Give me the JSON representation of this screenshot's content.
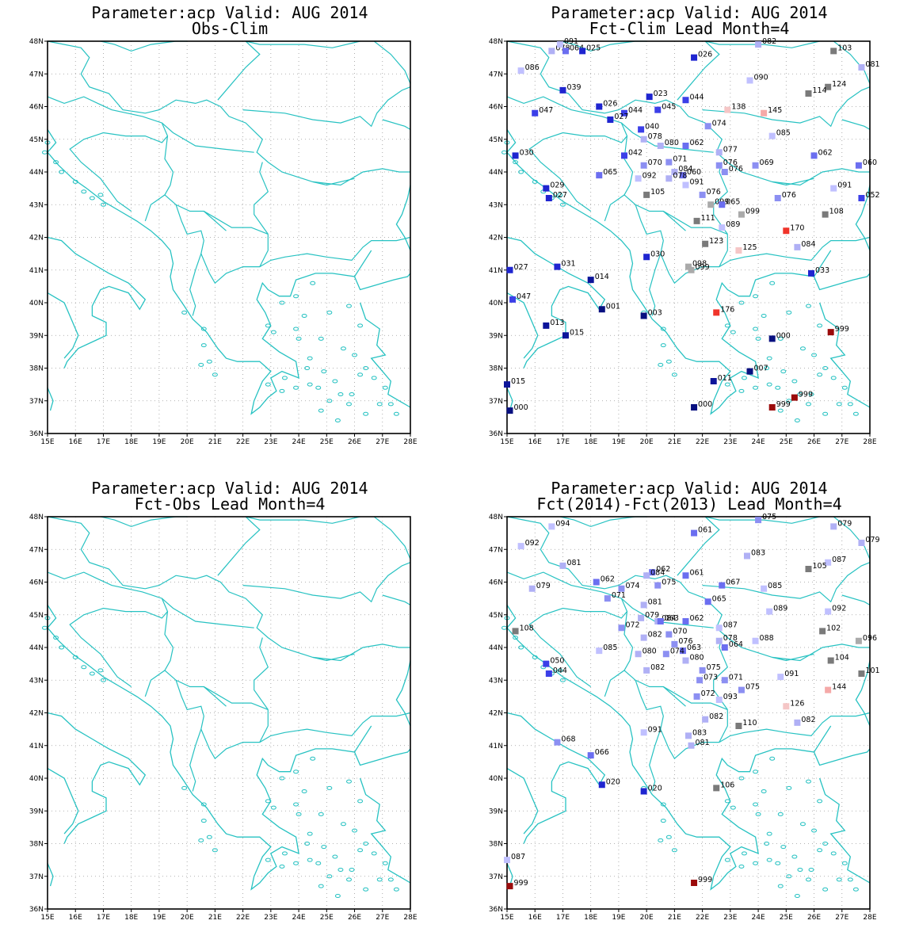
{
  "colors": {
    "coast": "#27c2c2",
    "grid": "#9a9a9a",
    "frame": "#000000"
  },
  "axes": {
    "x_ticks": [
      "15E",
      "16E",
      "17E",
      "18E",
      "19E",
      "20E",
      "21E",
      "22E",
      "23E",
      "24E",
      "25E",
      "26E",
      "27E",
      "28E"
    ],
    "y_ticks": [
      "48N",
      "47N",
      "46N",
      "45N",
      "44N",
      "43N",
      "42N",
      "41N",
      "40N",
      "39N",
      "38N",
      "37N",
      "36N"
    ],
    "lon_range": [
      15,
      28
    ],
    "lat_range": [
      36,
      48
    ]
  },
  "panels": [
    {
      "title1": "Parameter:acp Valid: AUG 2014",
      "title2": "Obs-Clim",
      "stations": []
    },
    {
      "title1": "Parameter:acp Valid: AUG 2014",
      "title2": "Fct-Clim Lead Month=4",
      "stations": [
        {
          "lon": 16.6,
          "lat": 47.7,
          "v": "078"
        },
        {
          "lon": 17.1,
          "lat": 47.7,
          "v": "064"
        },
        {
          "lon": 17.7,
          "lat": 47.7,
          "v": "025"
        },
        {
          "lon": 16.9,
          "lat": 47.9,
          "v": "091"
        },
        {
          "lon": 21.7,
          "lat": 47.5,
          "v": "026"
        },
        {
          "lon": 24.0,
          "lat": 47.9,
          "v": "082"
        },
        {
          "lon": 26.7,
          "lat": 47.7,
          "v": "103"
        },
        {
          "lon": 27.7,
          "lat": 47.2,
          "v": "081"
        },
        {
          "lon": 15.5,
          "lat": 47.1,
          "v": "086"
        },
        {
          "lon": 23.7,
          "lat": 46.8,
          "v": "090"
        },
        {
          "lon": 17.0,
          "lat": 46.5,
          "v": "039"
        },
        {
          "lon": 26.5,
          "lat": 46.6,
          "v": "124"
        },
        {
          "lon": 25.8,
          "lat": 46.4,
          "v": "114"
        },
        {
          "lon": 20.1,
          "lat": 46.3,
          "v": "023"
        },
        {
          "lon": 21.4,
          "lat": 46.2,
          "v": "044"
        },
        {
          "lon": 18.3,
          "lat": 46.0,
          "v": "026"
        },
        {
          "lon": 16.0,
          "lat": 45.8,
          "v": "047"
        },
        {
          "lon": 19.2,
          "lat": 45.8,
          "v": "044"
        },
        {
          "lon": 20.4,
          "lat": 45.9,
          "v": "045"
        },
        {
          "lon": 22.9,
          "lat": 45.9,
          "v": "138"
        },
        {
          "lon": 24.2,
          "lat": 45.8,
          "v": "145"
        },
        {
          "lon": 18.7,
          "lat": 45.6,
          "v": "027"
        },
        {
          "lon": 22.2,
          "lat": 45.4,
          "v": "074"
        },
        {
          "lon": 19.8,
          "lat": 45.3,
          "v": "040"
        },
        {
          "lon": 24.5,
          "lat": 45.1,
          "v": "085"
        },
        {
          "lon": 19.9,
          "lat": 45.0,
          "v": "078"
        },
        {
          "lon": 20.5,
          "lat": 44.8,
          "v": "080"
        },
        {
          "lon": 21.4,
          "lat": 44.8,
          "v": "062"
        },
        {
          "lon": 22.6,
          "lat": 44.6,
          "v": "077"
        },
        {
          "lon": 19.2,
          "lat": 44.5,
          "v": "042"
        },
        {
          "lon": 20.8,
          "lat": 44.3,
          "v": "071"
        },
        {
          "lon": 19.9,
          "lat": 44.2,
          "v": "070"
        },
        {
          "lon": 22.6,
          "lat": 44.2,
          "v": "076"
        },
        {
          "lon": 23.9,
          "lat": 44.2,
          "v": "069"
        },
        {
          "lon": 26.0,
          "lat": 44.5,
          "v": "062"
        },
        {
          "lon": 27.6,
          "lat": 44.2,
          "v": "060"
        },
        {
          "lon": 15.3,
          "lat": 44.5,
          "v": "030"
        },
        {
          "lon": 21.0,
          "lat": 44.0,
          "v": "084"
        },
        {
          "lon": 21.3,
          "lat": 43.9,
          "v": "060"
        },
        {
          "lon": 22.8,
          "lat": 44.0,
          "v": "076"
        },
        {
          "lon": 18.3,
          "lat": 43.9,
          "v": "065"
        },
        {
          "lon": 19.7,
          "lat": 43.8,
          "v": "092"
        },
        {
          "lon": 20.8,
          "lat": 43.8,
          "v": "078"
        },
        {
          "lon": 21.4,
          "lat": 43.6,
          "v": "091"
        },
        {
          "lon": 16.4,
          "lat": 43.5,
          "v": "029"
        },
        {
          "lon": 26.7,
          "lat": 43.5,
          "v": "091"
        },
        {
          "lon": 22.0,
          "lat": 43.3,
          "v": "076"
        },
        {
          "lon": 20.0,
          "lat": 43.3,
          "v": "105"
        },
        {
          "lon": 16.5,
          "lat": 43.2,
          "v": "027"
        },
        {
          "lon": 27.7,
          "lat": 43.2,
          "v": "052"
        },
        {
          "lon": 24.7,
          "lat": 43.2,
          "v": "076"
        },
        {
          "lon": 22.3,
          "lat": 43.0,
          "v": "099"
        },
        {
          "lon": 22.7,
          "lat": 43.0,
          "v": "065"
        },
        {
          "lon": 23.4,
          "lat": 42.7,
          "v": "099"
        },
        {
          "lon": 26.4,
          "lat": 42.7,
          "v": "108"
        },
        {
          "lon": 21.8,
          "lat": 42.5,
          "v": "111"
        },
        {
          "lon": 22.7,
          "lat": 42.3,
          "v": "089"
        },
        {
          "lon": 25.0,
          "lat": 42.2,
          "v": "170"
        },
        {
          "lon": 22.1,
          "lat": 41.8,
          "v": "123"
        },
        {
          "lon": 25.4,
          "lat": 41.7,
          "v": "084"
        },
        {
          "lon": 23.3,
          "lat": 41.6,
          "v": "125"
        },
        {
          "lon": 21.5,
          "lat": 41.1,
          "v": "098"
        },
        {
          "lon": 20.0,
          "lat": 41.4,
          "v": "030"
        },
        {
          "lon": 21.6,
          "lat": 41.0,
          "v": "099"
        },
        {
          "lon": 15.1,
          "lat": 41.0,
          "v": "027"
        },
        {
          "lon": 16.8,
          "lat": 41.1,
          "v": "031"
        },
        {
          "lon": 25.9,
          "lat": 40.9,
          "v": "033"
        },
        {
          "lon": 18.0,
          "lat": 40.7,
          "v": "014"
        },
        {
          "lon": 15.2,
          "lat": 40.1,
          "v": "047"
        },
        {
          "lon": 18.4,
          "lat": 39.8,
          "v": "001"
        },
        {
          "lon": 19.9,
          "lat": 39.6,
          "v": "003"
        },
        {
          "lon": 22.5,
          "lat": 39.7,
          "v": "176"
        },
        {
          "lon": 16.4,
          "lat": 39.3,
          "v": "013"
        },
        {
          "lon": 17.1,
          "lat": 39.0,
          "v": "015"
        },
        {
          "lon": 24.5,
          "lat": 38.9,
          "v": "000"
        },
        {
          "lon": 26.6,
          "lat": 39.1,
          "v": "999"
        },
        {
          "lon": 23.7,
          "lat": 37.9,
          "v": "007"
        },
        {
          "lon": 15.0,
          "lat": 37.5,
          "v": "015"
        },
        {
          "lon": 22.4,
          "lat": 37.6,
          "v": "011"
        },
        {
          "lon": 25.3,
          "lat": 37.1,
          "v": "999"
        },
        {
          "lon": 21.7,
          "lat": 36.8,
          "v": "000"
        },
        {
          "lon": 24.5,
          "lat": 36.8,
          "v": "999"
        },
        {
          "lon": 15.1,
          "lat": 36.7,
          "v": "000"
        }
      ]
    },
    {
      "title1": "Parameter:acp Valid: AUG 2014",
      "title2": "Fct-Obs Lead Month=4",
      "stations": []
    },
    {
      "title1": "Parameter:acp Valid: AUG 2014",
      "title2": "Fct(2014)-Fct(2013) Lead Month=4",
      "stations": [
        {
          "lon": 16.6,
          "lat": 47.7,
          "v": "094"
        },
        {
          "lon": 21.7,
          "lat": 47.5,
          "v": "061"
        },
        {
          "lon": 24.0,
          "lat": 47.9,
          "v": "075"
        },
        {
          "lon": 26.7,
          "lat": 47.7,
          "v": "079"
        },
        {
          "lon": 27.7,
          "lat": 47.2,
          "v": "079"
        },
        {
          "lon": 15.5,
          "lat": 47.1,
          "v": "092"
        },
        {
          "lon": 23.6,
          "lat": 46.8,
          "v": "083"
        },
        {
          "lon": 17.0,
          "lat": 46.5,
          "v": "081"
        },
        {
          "lon": 26.5,
          "lat": 46.6,
          "v": "087"
        },
        {
          "lon": 25.8,
          "lat": 46.4,
          "v": "105"
        },
        {
          "lon": 20.2,
          "lat": 46.3,
          "v": "062"
        },
        {
          "lon": 21.4,
          "lat": 46.2,
          "v": "061"
        },
        {
          "lon": 18.2,
          "lat": 46.0,
          "v": "062"
        },
        {
          "lon": 15.9,
          "lat": 45.8,
          "v": "079"
        },
        {
          "lon": 19.1,
          "lat": 45.8,
          "v": "074"
        },
        {
          "lon": 20.4,
          "lat": 45.9,
          "v": "075"
        },
        {
          "lon": 22.7,
          "lat": 45.9,
          "v": "067"
        },
        {
          "lon": 24.2,
          "lat": 45.8,
          "v": "085"
        },
        {
          "lon": 20.0,
          "lat": 46.2,
          "v": "084"
        },
        {
          "lon": 18.6,
          "lat": 45.5,
          "v": "071"
        },
        {
          "lon": 22.2,
          "lat": 45.4,
          "v": "065"
        },
        {
          "lon": 19.9,
          "lat": 45.3,
          "v": "081"
        },
        {
          "lon": 24.4,
          "lat": 45.1,
          "v": "089"
        },
        {
          "lon": 26.5,
          "lat": 45.1,
          "v": "092"
        },
        {
          "lon": 19.8,
          "lat": 44.9,
          "v": "079"
        },
        {
          "lon": 20.4,
          "lat": 44.8,
          "v": "084"
        },
        {
          "lon": 20.5,
          "lat": 44.8,
          "v": "063"
        },
        {
          "lon": 21.4,
          "lat": 44.8,
          "v": "062"
        },
        {
          "lon": 22.6,
          "lat": 44.6,
          "v": "087"
        },
        {
          "lon": 19.1,
          "lat": 44.6,
          "v": "072"
        },
        {
          "lon": 20.8,
          "lat": 44.4,
          "v": "070"
        },
        {
          "lon": 19.9,
          "lat": 44.3,
          "v": "082"
        },
        {
          "lon": 22.6,
          "lat": 44.2,
          "v": "078"
        },
        {
          "lon": 23.9,
          "lat": 44.2,
          "v": "088"
        },
        {
          "lon": 26.3,
          "lat": 44.5,
          "v": "102"
        },
        {
          "lon": 27.6,
          "lat": 44.2,
          "v": "096"
        },
        {
          "lon": 15.3,
          "lat": 44.5,
          "v": "108"
        },
        {
          "lon": 21.0,
          "lat": 44.1,
          "v": "076"
        },
        {
          "lon": 21.3,
          "lat": 43.9,
          "v": "063"
        },
        {
          "lon": 22.8,
          "lat": 44.0,
          "v": "064"
        },
        {
          "lon": 18.3,
          "lat": 43.9,
          "v": "085"
        },
        {
          "lon": 19.7,
          "lat": 43.8,
          "v": "080"
        },
        {
          "lon": 20.7,
          "lat": 43.8,
          "v": "074"
        },
        {
          "lon": 21.4,
          "lat": 43.6,
          "v": "080"
        },
        {
          "lon": 16.4,
          "lat": 43.5,
          "v": "050"
        },
        {
          "lon": 26.6,
          "lat": 43.6,
          "v": "104"
        },
        {
          "lon": 20.0,
          "lat": 43.3,
          "v": "082"
        },
        {
          "lon": 22.0,
          "lat": 43.3,
          "v": "075"
        },
        {
          "lon": 16.5,
          "lat": 43.2,
          "v": "044"
        },
        {
          "lon": 27.7,
          "lat": 43.2,
          "v": "101"
        },
        {
          "lon": 24.8,
          "lat": 43.1,
          "v": "091"
        },
        {
          "lon": 21.9,
          "lat": 43.0,
          "v": "073"
        },
        {
          "lon": 22.8,
          "lat": 43.0,
          "v": "071"
        },
        {
          "lon": 23.4,
          "lat": 42.7,
          "v": "075"
        },
        {
          "lon": 26.5,
          "lat": 42.7,
          "v": "144"
        },
        {
          "lon": 21.8,
          "lat": 42.5,
          "v": "072"
        },
        {
          "lon": 22.6,
          "lat": 42.4,
          "v": "093"
        },
        {
          "lon": 25.0,
          "lat": 42.2,
          "v": "126"
        },
        {
          "lon": 22.1,
          "lat": 41.8,
          "v": "082"
        },
        {
          "lon": 25.4,
          "lat": 41.7,
          "v": "082"
        },
        {
          "lon": 23.3,
          "lat": 41.6,
          "v": "110"
        },
        {
          "lon": 21.5,
          "lat": 41.3,
          "v": "083"
        },
        {
          "lon": 19.9,
          "lat": 41.4,
          "v": "091"
        },
        {
          "lon": 21.6,
          "lat": 41.0,
          "v": "081"
        },
        {
          "lon": 16.8,
          "lat": 41.1,
          "v": "068"
        },
        {
          "lon": 18.0,
          "lat": 40.7,
          "v": "066"
        },
        {
          "lon": 18.4,
          "lat": 39.8,
          "v": "020"
        },
        {
          "lon": 19.9,
          "lat": 39.6,
          "v": "020"
        },
        {
          "lon": 22.5,
          "lat": 39.7,
          "v": "106"
        },
        {
          "lon": 15.0,
          "lat": 37.5,
          "v": "087"
        },
        {
          "lon": 21.7,
          "lat": 36.8,
          "v": "999"
        },
        {
          "lon": 15.1,
          "lat": 36.7,
          "v": "999"
        }
      ]
    }
  ]
}
